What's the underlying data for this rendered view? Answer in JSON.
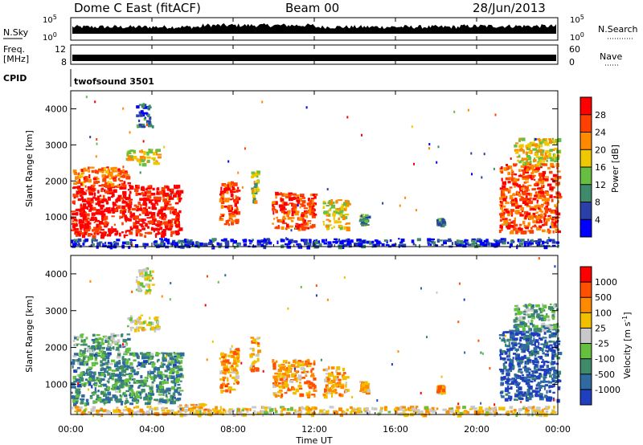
{
  "header": {
    "station": "Dome C East (fitACF)",
    "beam": "Beam 00",
    "date": "28/Jun/2013"
  },
  "left_labels": {
    "nsky": "N.Sky",
    "freq": "Freq.",
    "freq_unit": "[MHz]",
    "cpid": "CPID"
  },
  "right_labels": {
    "nsearch": "N.Search",
    "nave": "Nave"
  },
  "cpid_value": "twofsound 3501",
  "noise_ticks": {
    "high": "10^5",
    "low": "10^0"
  },
  "freq_ticks": {
    "top": "12",
    "bottom": "8"
  },
  "nave_ticks": {
    "top": "60",
    "bottom": "0"
  },
  "chart_data": [
    {
      "type": "heatmap",
      "title": "Power",
      "ylabel": "Slant Range [km]",
      "xlabel": "",
      "x_range_hours": [
        0,
        24
      ],
      "ylim": [
        180,
        4500
      ],
      "y_ticks": [
        "1000",
        "2000",
        "3000",
        "4000"
      ],
      "colorbar": {
        "label": "Power [dB]",
        "ticks": [
          "4",
          "8",
          "12",
          "16",
          "20",
          "24",
          "28"
        ],
        "colors": [
          "#0000ff",
          "#2a3fa8",
          "#3e8a6a",
          "#66bf40",
          "#f0c800",
          "#ff8a00",
          "#ff4000",
          "#ff0000"
        ]
      },
      "regions": [
        {
          "t0": 0.0,
          "t1": 5.4,
          "r0": 500,
          "r1": 1900,
          "level": 0.95
        },
        {
          "t0": 0.1,
          "t1": 2.8,
          "r0": 1900,
          "r1": 2400,
          "level": 0.75
        },
        {
          "t0": 2.7,
          "t1": 4.3,
          "r0": 2500,
          "r1": 2900,
          "level": 0.55
        },
        {
          "t0": 3.2,
          "t1": 4.0,
          "r0": 3500,
          "r1": 4200,
          "level": 0.25
        },
        {
          "t0": 7.3,
          "t1": 8.2,
          "r0": 800,
          "r1": 2000,
          "level": 0.85
        },
        {
          "t0": 8.8,
          "t1": 9.2,
          "r0": 1400,
          "r1": 2300,
          "level": 0.5
        },
        {
          "t0": 9.9,
          "t1": 12.0,
          "r0": 700,
          "r1": 1700,
          "level": 0.82
        },
        {
          "t0": 12.4,
          "t1": 13.6,
          "r0": 700,
          "r1": 1500,
          "level": 0.55
        },
        {
          "t0": 14.2,
          "t1": 14.6,
          "r0": 800,
          "r1": 1100,
          "level": 0.35
        },
        {
          "t0": 18.0,
          "t1": 18.3,
          "r0": 800,
          "r1": 1000,
          "level": 0.3
        },
        {
          "t0": 21.1,
          "t1": 24.0,
          "r0": 600,
          "r1": 2500,
          "level": 0.8
        },
        {
          "t0": 21.8,
          "t1": 24.0,
          "r0": 2500,
          "r1": 3200,
          "level": 0.55
        },
        {
          "t0": 0.0,
          "t1": 24.0,
          "r0": 200,
          "r1": 420,
          "level": 0.15
        }
      ]
    },
    {
      "type": "heatmap",
      "title": "Velocity",
      "ylabel": "Slant Range [km]",
      "xlabel": "Time UT",
      "x_range_hours": [
        0,
        24
      ],
      "ylim": [
        180,
        4500
      ],
      "y_ticks": [
        "1000",
        "2000",
        "3000",
        "4000"
      ],
      "colorbar": {
        "label": "Velocity [m s^-1]",
        "ticks": [
          "1000",
          "500",
          "100",
          "25",
          "-25",
          "-100",
          "-500",
          "-1000"
        ],
        "colors": [
          "#1f3fbf",
          "#2f6aa0",
          "#3f8a6a",
          "#66c040",
          "#c8c8c8",
          "#f0c000",
          "#ff8a00",
          "#ff5000",
          "#ff0000"
        ]
      },
      "regions": [
        {
          "t0": 0.0,
          "t1": 5.4,
          "r0": 500,
          "r1": 1900,
          "level": 0.28
        },
        {
          "t0": 0.1,
          "t1": 2.8,
          "r0": 1900,
          "r1": 2400,
          "level": 0.35
        },
        {
          "t0": 2.7,
          "t1": 4.3,
          "r0": 2500,
          "r1": 2900,
          "level": 0.5
        },
        {
          "t0": 3.2,
          "t1": 4.0,
          "r0": 3500,
          "r1": 4200,
          "level": 0.5
        },
        {
          "t0": 5.3,
          "t1": 6.6,
          "r0": 200,
          "r1": 500,
          "level": 0.62
        },
        {
          "t0": 7.3,
          "t1": 8.2,
          "r0": 800,
          "r1": 2000,
          "level": 0.72
        },
        {
          "t0": 8.8,
          "t1": 9.2,
          "r0": 1400,
          "r1": 2300,
          "level": 0.68
        },
        {
          "t0": 9.9,
          "t1": 12.0,
          "r0": 700,
          "r1": 1700,
          "level": 0.7
        },
        {
          "t0": 12.4,
          "t1": 13.6,
          "r0": 700,
          "r1": 1500,
          "level": 0.68
        },
        {
          "t0": 14.2,
          "t1": 14.6,
          "r0": 800,
          "r1": 1100,
          "level": 0.65
        },
        {
          "t0": 18.0,
          "t1": 18.3,
          "r0": 800,
          "r1": 1000,
          "level": 0.7
        },
        {
          "t0": 21.1,
          "t1": 24.0,
          "r0": 600,
          "r1": 2500,
          "level": 0.1
        },
        {
          "t0": 21.8,
          "t1": 24.0,
          "r0": 2500,
          "r1": 3200,
          "level": 0.35
        },
        {
          "t0": 0.0,
          "t1": 24.0,
          "r0": 200,
          "r1": 420,
          "level": 0.6
        }
      ]
    }
  ],
  "x_ticks": [
    "00:00",
    "04:00",
    "08:00",
    "12:00",
    "16:00",
    "20:00",
    "00:00"
  ]
}
